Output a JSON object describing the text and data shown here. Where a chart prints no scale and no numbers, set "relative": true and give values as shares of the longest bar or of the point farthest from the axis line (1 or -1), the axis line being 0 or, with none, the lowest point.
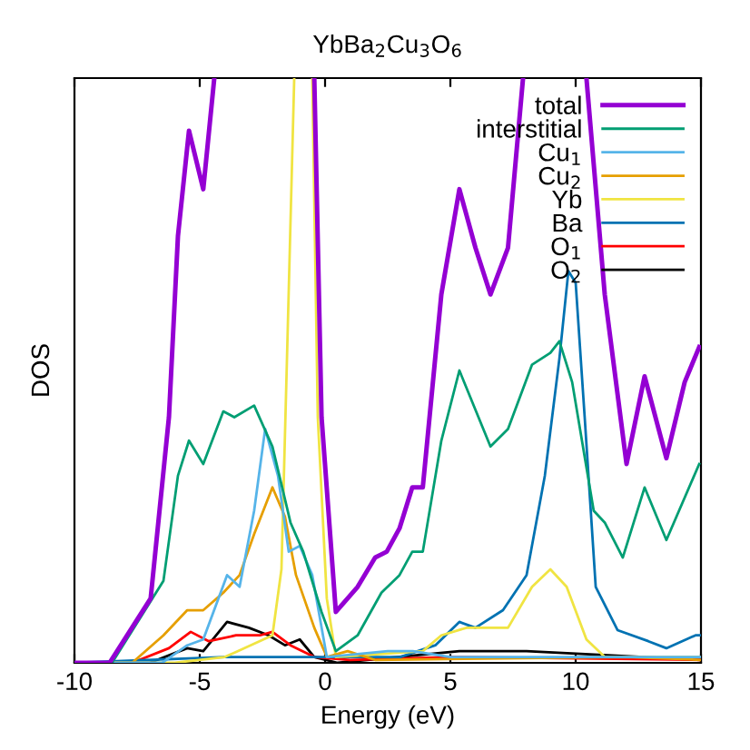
{
  "chart_data": {
    "type": "line",
    "title": "YbBa$_{2}$Cu$_{3}$O$_{6}$",
    "xlabel": "Energy (eV)",
    "ylabel": "DOS",
    "relative": true,
    "xlim": [
      -10,
      15
    ],
    "xticks": [
      -10,
      -5,
      0,
      5,
      10,
      15
    ],
    "tick_labels": "x",
    "legend": "top right",
    "grid": false,
    "marker": "none",
    "line_style": "solid",
    "series": [
      {
        "name": "total",
        "color": "#9400d3",
        "x": [
          -10,
          -8.6,
          -6.96,
          -6.23,
          -5.87,
          -5.43,
          -4.86,
          -4.42,
          -4.3,
          -0.55,
          -0.43,
          -0.14,
          0.43,
          1.3,
          2.0,
          2.46,
          2.97,
          3.48,
          3.9,
          4.64,
          5.36,
          6.0,
          6.6,
          7.3,
          7.9,
          8.0,
          10.3,
          10.43,
          11.16,
          12.03,
          12.75,
          13.62,
          14.35,
          14.93
        ],
        "values": [
          0,
          0,
          0.11,
          0.42,
          0.73,
          0.91,
          0.81,
          1.0,
          null,
          null,
          1.0,
          0.42,
          0.087,
          0.13,
          0.18,
          0.19,
          0.23,
          0.3,
          0.3,
          0.63,
          0.81,
          0.71,
          0.63,
          0.71,
          1.0,
          null,
          null,
          1.0,
          0.63,
          0.34,
          0.49,
          0.35,
          0.48,
          0.54
        ]
      },
      {
        "name": "interstitial",
        "color": "#009e73",
        "x": [
          -10,
          -8.5,
          -6.45,
          -5.87,
          -5.43,
          -4.86,
          -4.06,
          -3.62,
          -2.83,
          -2.1,
          -1.38,
          -0.87,
          -0.14,
          0.43,
          1.3,
          2.25,
          2.97,
          3.48,
          3.9,
          4.64,
          5.36,
          6.6,
          7.3,
          8.26,
          8.99,
          9.35,
          9.86,
          10.72,
          11.16,
          11.88,
          12.75,
          13.62,
          14.93
        ],
        "values": [
          0,
          0,
          0.14,
          0.32,
          0.38,
          0.34,
          0.43,
          0.42,
          0.44,
          0.37,
          0.24,
          0.19,
          0.087,
          0.02,
          0.047,
          0.12,
          0.15,
          0.19,
          0.19,
          0.38,
          0.5,
          0.37,
          0.4,
          0.51,
          0.53,
          0.55,
          0.48,
          0.26,
          0.24,
          0.18,
          0.3,
          0.21,
          0.34
        ]
      },
      {
        "name": "Cu$_{1}$",
        "color": "#56b4e9",
        "x": [
          -10,
          -6.5,
          -5.5,
          -4.86,
          -3.91,
          -3.41,
          -2.83,
          -2.39,
          -1.88,
          -1.45,
          -1.01,
          -0.51,
          0.07,
          2.5,
          3.5,
          5,
          8,
          10,
          12,
          15
        ],
        "values": [
          0,
          0,
          0.03,
          0.04,
          0.15,
          0.13,
          0.26,
          0.4,
          0.32,
          0.19,
          0.2,
          0.15,
          0.01,
          0.02,
          0.02,
          0.01,
          0.01,
          0.01,
          0.01,
          0.01
        ]
      },
      {
        "name": "Cu$_{2}$",
        "color": "#e69f00",
        "x": [
          -10,
          -7.7,
          -6.45,
          -5.5,
          -4.86,
          -4.06,
          -3.41,
          -2.83,
          -2.1,
          -1.6,
          -1.16,
          -0.43,
          0.07,
          0.9,
          2,
          12,
          15
        ],
        "values": [
          0,
          0,
          0.047,
          0.09,
          0.09,
          0.12,
          0.15,
          0.22,
          0.3,
          0.25,
          0.15,
          0.06,
          0.01,
          0.02,
          0.005,
          0.01,
          0.005
        ]
      },
      {
        "name": "Yb",
        "color": "#f0e442",
        "x": [
          -10,
          -6,
          -4,
          -2.1,
          -1.74,
          -1.52,
          -1.23,
          -1.2,
          -0.55,
          -0.51,
          -0.29,
          0.07,
          0.43,
          3.9,
          4.64,
          5.65,
          7.3,
          8.26,
          8.99,
          9.64,
          10.43,
          11.16,
          15
        ],
        "values": [
          0,
          0,
          0.01,
          0.047,
          0.16,
          0.52,
          1.0,
          null,
          null,
          1.0,
          0.42,
          0.11,
          0.01,
          0.02,
          0.047,
          0.06,
          0.06,
          0.13,
          0.16,
          0.13,
          0.04,
          0.01,
          0.01
        ]
      },
      {
        "name": "Ba",
        "color": "#0072b2",
        "x": [
          -10,
          -4,
          3,
          4.4,
          5.36,
          6.0,
          7.1,
          8.04,
          8.77,
          9.35,
          9.71,
          10.0,
          10.36,
          10.8,
          11.67,
          12.9,
          13.62,
          14.78,
          15
        ],
        "values": [
          0,
          0.01,
          0.01,
          0.03,
          0.07,
          0.06,
          0.09,
          0.15,
          0.32,
          0.52,
          0.67,
          0.65,
          0.42,
          0.13,
          0.056,
          0.037,
          0.025,
          0.047,
          0.047
        ]
      },
      {
        "name": "O$_{1}$",
        "color": "#ff0000",
        "x": [
          -10,
          -7.7,
          -6.23,
          -5.36,
          -4.64,
          -3.55,
          -2.6,
          -2.1,
          -1.38,
          -0.43,
          1,
          5,
          15
        ],
        "values": [
          0,
          0,
          0.025,
          0.053,
          0.037,
          0.047,
          0.047,
          0.053,
          0.03,
          0.01,
          0.005,
          0.01,
          0.005
        ]
      },
      {
        "name": "O$_{2}$",
        "color": "#000000",
        "x": [
          -10,
          -7.0,
          -5.5,
          -4.86,
          -3.91,
          -3.04,
          -2.25,
          -1.6,
          -1.01,
          -0.43,
          0.5,
          5.36,
          8.04,
          15
        ],
        "values": [
          0,
          0,
          0.025,
          0.02,
          0.07,
          0.06,
          0.047,
          0.03,
          0.04,
          0.01,
          0,
          0.02,
          0.02,
          0.005
        ]
      }
    ]
  }
}
